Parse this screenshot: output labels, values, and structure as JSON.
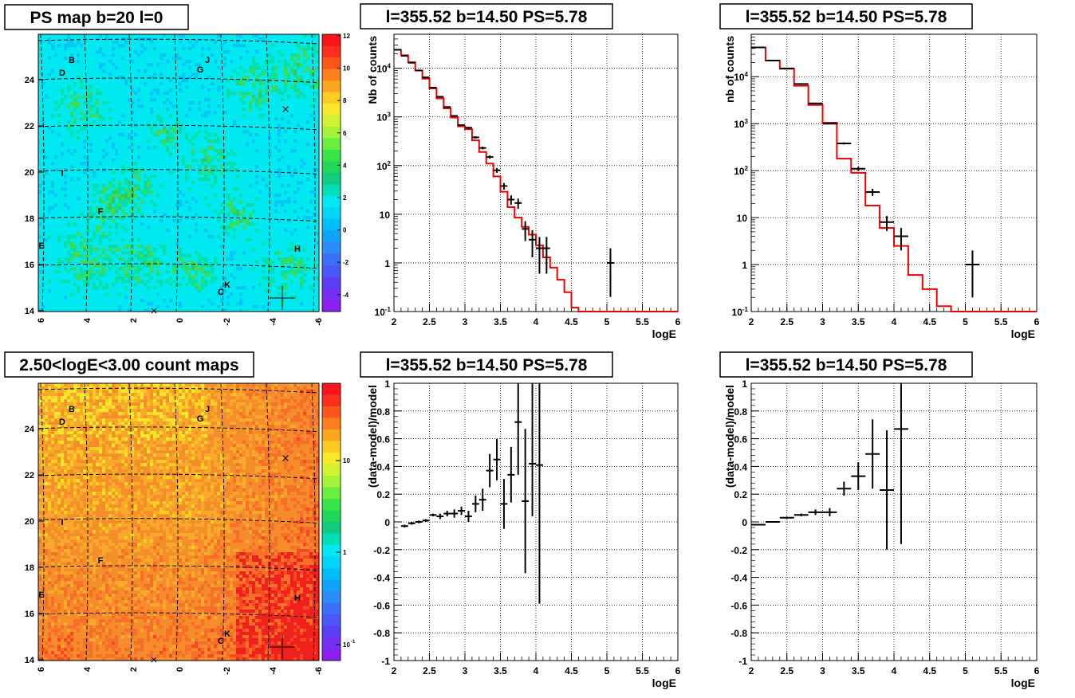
{
  "maps": [
    {
      "title": "PS map b=20 l=0",
      "xticks": [
        "6",
        "4",
        "2",
        "0",
        "-2",
        "-4",
        "-6"
      ],
      "yticks": [
        "14",
        "16",
        "18",
        "20",
        "22",
        "24"
      ],
      "zticks": [
        "12",
        "10",
        "8",
        "6",
        "4",
        "2",
        "0",
        "-2",
        "-4"
      ],
      "labels": [
        "B",
        "D",
        "J",
        "G",
        "I",
        "F",
        "E",
        "H",
        "K",
        "C"
      ],
      "colors": {
        "bg": "#00e8f0",
        "blob": "#3ddc54"
      }
    },
    {
      "title": "2.50<logE<3.00 count maps",
      "xticks": [
        "6",
        "4",
        "2",
        "0",
        "-2",
        "-4",
        "-6"
      ],
      "yticks": [
        "14",
        "16",
        "18",
        "20",
        "22",
        "24"
      ],
      "zticks": [
        "10",
        "1",
        "10"
      ],
      "zticks_sup": "-1",
      "labels": [
        "B",
        "D",
        "J",
        "G",
        "I",
        "F",
        "E",
        "H",
        "K",
        "C"
      ],
      "colors": {
        "bg": "#f58e2a",
        "hot": "#f0201c"
      }
    }
  ],
  "chart_data": [
    {
      "type": "line",
      "title": "l=355.52 b=14.50 PS=5.78",
      "xlabel": "logE",
      "ylabel": "Nb of counts",
      "yscale": "log",
      "xlim": [
        2,
        6
      ],
      "ylim": [
        0.1,
        50000
      ],
      "xticks": [
        "2",
        "2.5",
        "3",
        "3.5",
        "4",
        "4.5",
        "5",
        "5.5",
        "6"
      ],
      "yticks": [
        "10^{-1}",
        "1",
        "10",
        "10^{2}",
        "10^{3}",
        "10^{4}"
      ],
      "bin_width": 0.1,
      "data_x": [
        2.05,
        2.15,
        2.25,
        2.35,
        2.45,
        2.55,
        2.65,
        2.75,
        2.85,
        2.95,
        3.05,
        3.15,
        3.25,
        3.35,
        3.45,
        3.55,
        3.65,
        3.75,
        3.85,
        3.95,
        4.05,
        4.15,
        5.05
      ],
      "data_y": [
        24000,
        18000,
        13000,
        9000,
        6500,
        4000,
        2600,
        1600,
        1050,
        680,
        600,
        380,
        230,
        150,
        80,
        38,
        20,
        17,
        5,
        3,
        2,
        2,
        1
      ],
      "data_err_lo": [
        155,
        134,
        114,
        95,
        81,
        63,
        51,
        40,
        32,
        26,
        24,
        19,
        15,
        12,
        9,
        6,
        4.4,
        4,
        2.2,
        1.7,
        1.4,
        1.4,
        0.8
      ],
      "data_err_hi": [
        155,
        134,
        114,
        95,
        81,
        63,
        51,
        40,
        32,
        26,
        24,
        19,
        15,
        12,
        9,
        6,
        4.4,
        4,
        2.2,
        1.7,
        1.4,
        1.4,
        1
      ],
      "model_y": [
        24000,
        18500,
        13300,
        9000,
        6100,
        3850,
        2400,
        1500,
        970,
        640,
        560,
        330,
        190,
        110,
        60,
        29,
        14,
        8.5,
        5.5,
        3.8,
        2.3,
        1.3,
        0.8,
        0.45,
        0.25,
        0.12,
        0.1,
        0.1,
        0.1,
        0.1,
        0.1,
        0.1,
        0.1,
        0.1,
        0.1,
        0.1,
        0.1,
        0.1,
        0.1,
        0.1
      ]
    },
    {
      "type": "line",
      "title": "l=355.52 b=14.50 PS=5.78",
      "xlabel": "logE",
      "ylabel": "nb of counts",
      "yscale": "log",
      "xlim": [
        2,
        6
      ],
      "ylim": [
        0.1,
        80000
      ],
      "xticks": [
        "2",
        "2.5",
        "3",
        "3.5",
        "4",
        "4.5",
        "5",
        "5.5",
        "6"
      ],
      "yticks": [
        "10^{-1}",
        "1",
        "10",
        "10^{2}",
        "10^{3}",
        "10^{4}"
      ],
      "bin_width": 0.2,
      "data_x": [
        2.1,
        2.3,
        2.5,
        2.7,
        2.9,
        3.1,
        3.3,
        3.5,
        3.7,
        3.9,
        4.1,
        5.1
      ],
      "data_y": [
        42000,
        22000,
        15000,
        7000,
        2700,
        1000,
        380,
        110,
        35,
        8,
        4,
        1
      ],
      "data_err_lo": [
        205,
        148,
        122,
        84,
        52,
        32,
        19,
        10.5,
        6,
        2.8,
        2,
        0.8
      ],
      "data_err_hi": [
        205,
        148,
        122,
        84,
        52,
        32,
        19,
        10.5,
        6,
        2.8,
        2,
        1
      ],
      "model_y": [
        42000,
        22000,
        14800,
        6400,
        2500,
        1050,
        180,
        90,
        18,
        6,
        2.5,
        0.6,
        0.3,
        0.13,
        0.1,
        0.1,
        0.1,
        0.1,
        0.1,
        0.1
      ]
    },
    {
      "type": "scatter",
      "title": "l=355.52 b=14.50 PS=5.78",
      "xlabel": "logE",
      "ylabel": "(data-model)/model",
      "xlim": [
        2,
        6
      ],
      "ylim": [
        -1,
        1
      ],
      "xticks": [
        "2",
        "2.5",
        "3",
        "3.5",
        "4",
        "4.5",
        "5",
        "5.5",
        "6"
      ],
      "yticks": [
        "-1",
        "-0.8",
        "-0.6",
        "-0.4",
        "-0.2",
        "0",
        "0.2",
        "0.4",
        "0.6",
        "0.8",
        "1"
      ],
      "bin_width": 0.1,
      "x": [
        2.15,
        2.25,
        2.35,
        2.45,
        2.55,
        2.65,
        2.75,
        2.85,
        2.95,
        3.05,
        3.15,
        3.25,
        3.35,
        3.45,
        3.55,
        3.65,
        3.75,
        3.85,
        3.95,
        4.05
      ],
      "y": [
        -0.03,
        -0.01,
        0.0,
        0.01,
        0.05,
        0.04,
        0.06,
        0.06,
        0.08,
        0.04,
        0.13,
        0.16,
        0.37,
        0.45,
        0.13,
        0.34,
        0.72,
        0.15,
        0.42,
        0.41
      ],
      "err_lo": [
        0.01,
        0.01,
        0.01,
        0.01,
        0.01,
        0.02,
        0.02,
        0.03,
        0.03,
        0.04,
        0.06,
        0.08,
        0.12,
        0.15,
        0.18,
        0.2,
        0.38,
        0.52,
        0.38,
        1.0
      ],
      "err_hi": [
        0.01,
        0.01,
        0.01,
        0.01,
        0.01,
        0.02,
        0.02,
        0.03,
        0.03,
        0.04,
        0.06,
        0.08,
        0.12,
        0.15,
        0.18,
        0.2,
        0.38,
        0.52,
        0.58,
        0.6
      ]
    },
    {
      "type": "scatter",
      "title": "l=355.52 b=14.50 PS=5.78",
      "xlabel": "logE",
      "ylabel": "(data-model)/model",
      "xlim": [
        2,
        6
      ],
      "ylim": [
        -1,
        1
      ],
      "xticks": [
        "2",
        "2.5",
        "3",
        "3.5",
        "4",
        "4.5",
        "5",
        "5.5",
        "6"
      ],
      "yticks": [
        "-1",
        "-0.8",
        "-0.6",
        "-0.4",
        "-0.2",
        "0",
        "0.2",
        "0.4",
        "0.6",
        "0.8",
        "1"
      ],
      "bin_width": 0.2,
      "x": [
        2.1,
        2.3,
        2.5,
        2.7,
        2.9,
        3.1,
        3.3,
        3.5,
        3.7,
        3.9,
        4.1
      ],
      "y": [
        -0.02,
        0.0,
        0.03,
        0.05,
        0.07,
        0.07,
        0.24,
        0.33,
        0.49,
        0.23,
        0.67
      ],
      "err_lo": [
        0.005,
        0.005,
        0.008,
        0.01,
        0.02,
        0.03,
        0.05,
        0.1,
        0.25,
        0.43,
        0.83
      ],
      "err_hi": [
        0.005,
        0.005,
        0.008,
        0.01,
        0.02,
        0.03,
        0.05,
        0.1,
        0.25,
        0.43,
        0.33
      ]
    }
  ]
}
